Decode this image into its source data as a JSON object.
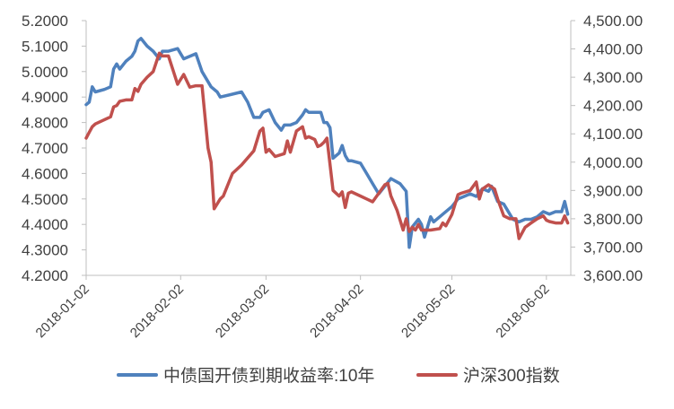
{
  "chart_data": {
    "type": "line",
    "title": "",
    "xlabel": "",
    "x_ticks": [
      "2018-01-02",
      "2018-02-02",
      "2018-03-02",
      "2018-04-02",
      "2018-05-02",
      "2018-06-02"
    ],
    "y_left": {
      "range": [
        4.2,
        5.2
      ],
      "ticks": [
        "4.2000",
        "4.3000",
        "4.4000",
        "4.5000",
        "4.6000",
        "4.7000",
        "4.8000",
        "4.9000",
        "5.0000",
        "5.1000",
        "5.2000"
      ]
    },
    "y_right": {
      "range": [
        3600,
        4500
      ],
      "ticks": [
        "3,600.00",
        "3,700.00",
        "3,800.00",
        "3,900.00",
        "4,000.00",
        "4,100.00",
        "4,200.00",
        "4,300.00",
        "4,400.00",
        "4,500.00"
      ]
    },
    "grid": false,
    "legend_position": "bottom",
    "series": [
      {
        "name": "中债国开债到期收益率:10年",
        "axis": "left",
        "color": "#4F81BD",
        "points": [
          [
            "2018-01-02",
            4.87
          ],
          [
            "2018-01-03",
            4.88
          ],
          [
            "2018-01-04",
            4.94
          ],
          [
            "2018-01-05",
            4.92
          ],
          [
            "2018-01-08",
            4.93
          ],
          [
            "2018-01-10",
            4.94
          ],
          [
            "2018-01-11",
            5.01
          ],
          [
            "2018-01-12",
            5.03
          ],
          [
            "2018-01-13",
            5.01
          ],
          [
            "2018-01-15",
            5.04
          ],
          [
            "2018-01-17",
            5.06
          ],
          [
            "2018-01-18",
            5.08
          ],
          [
            "2018-01-19",
            5.12
          ],
          [
            "2018-01-20",
            5.13
          ],
          [
            "2018-01-22",
            5.1
          ],
          [
            "2018-01-24",
            5.08
          ],
          [
            "2018-01-26",
            5.05
          ],
          [
            "2018-01-27",
            5.08
          ],
          [
            "2018-01-29",
            5.08
          ],
          [
            "2018-02-01",
            5.09
          ],
          [
            "2018-02-03",
            5.05
          ],
          [
            "2018-02-05",
            5.06
          ],
          [
            "2018-02-07",
            5.07
          ],
          [
            "2018-02-09",
            5.0
          ],
          [
            "2018-02-12",
            4.94
          ],
          [
            "2018-02-14",
            4.92
          ],
          [
            "2018-02-15",
            4.9
          ],
          [
            "2018-02-22",
            4.92
          ],
          [
            "2018-02-24",
            4.88
          ],
          [
            "2018-02-26",
            4.82
          ],
          [
            "2018-02-28",
            4.82
          ],
          [
            "2018-03-01",
            4.84
          ],
          [
            "2018-03-03",
            4.85
          ],
          [
            "2018-03-05",
            4.8
          ],
          [
            "2018-03-07",
            4.77
          ],
          [
            "2018-03-08",
            4.79
          ],
          [
            "2018-03-10",
            4.79
          ],
          [
            "2018-03-12",
            4.8
          ],
          [
            "2018-03-14",
            4.83
          ],
          [
            "2018-03-15",
            4.85
          ],
          [
            "2018-03-16",
            4.84
          ],
          [
            "2018-03-20",
            4.84
          ],
          [
            "2018-03-21",
            4.8
          ],
          [
            "2018-03-22",
            4.8
          ],
          [
            "2018-03-23",
            4.78
          ],
          [
            "2018-03-24",
            4.66
          ],
          [
            "2018-03-26",
            4.68
          ],
          [
            "2018-03-27",
            4.71
          ],
          [
            "2018-03-28",
            4.67
          ],
          [
            "2018-03-29",
            4.65
          ],
          [
            "2018-03-30",
            4.65
          ],
          [
            "2018-04-02",
            4.64
          ],
          [
            "2018-04-04",
            4.6
          ],
          [
            "2018-04-06",
            4.56
          ],
          [
            "2018-04-08",
            4.52
          ],
          [
            "2018-04-10",
            4.55
          ],
          [
            "2018-04-12",
            4.58
          ],
          [
            "2018-04-15",
            4.56
          ],
          [
            "2018-04-17",
            4.53
          ],
          [
            "2018-04-18",
            4.31
          ],
          [
            "2018-04-19",
            4.39
          ],
          [
            "2018-04-21",
            4.42
          ],
          [
            "2018-04-22",
            4.4
          ],
          [
            "2018-04-23",
            4.35
          ],
          [
            "2018-04-25",
            4.43
          ],
          [
            "2018-04-26",
            4.41
          ],
          [
            "2018-04-28",
            4.43
          ],
          [
            "2018-05-02",
            4.47
          ],
          [
            "2018-05-04",
            4.5
          ],
          [
            "2018-05-06",
            4.51
          ],
          [
            "2018-05-08",
            4.52
          ],
          [
            "2018-05-10",
            4.51
          ],
          [
            "2018-05-12",
            4.54
          ],
          [
            "2018-05-14",
            4.53
          ],
          [
            "2018-05-15",
            4.55
          ],
          [
            "2018-05-17",
            4.49
          ],
          [
            "2018-05-19",
            4.48
          ],
          [
            "2018-05-20",
            4.46
          ],
          [
            "2018-05-22",
            4.42
          ],
          [
            "2018-05-24",
            4.41
          ],
          [
            "2018-05-26",
            4.42
          ],
          [
            "2018-05-28",
            4.42
          ],
          [
            "2018-05-30",
            4.43
          ],
          [
            "2018-06-01",
            4.45
          ],
          [
            "2018-06-03",
            4.44
          ],
          [
            "2018-06-05",
            4.45
          ],
          [
            "2018-06-07",
            4.45
          ],
          [
            "2018-06-08",
            4.49
          ],
          [
            "2018-06-09",
            4.44
          ]
        ]
      },
      {
        "name": "沪深300指数",
        "axis": "right",
        "color": "#C0504D",
        "points": [
          [
            "2018-01-02",
            4085
          ],
          [
            "2018-01-03",
            4105
          ],
          [
            "2018-01-04",
            4125
          ],
          [
            "2018-01-05",
            4135
          ],
          [
            "2018-01-08",
            4150
          ],
          [
            "2018-01-10",
            4160
          ],
          [
            "2018-01-11",
            4195
          ],
          [
            "2018-01-12",
            4200
          ],
          [
            "2018-01-13",
            4215
          ],
          [
            "2018-01-15",
            4220
          ],
          [
            "2018-01-17",
            4220
          ],
          [
            "2018-01-18",
            4260
          ],
          [
            "2018-01-19",
            4250
          ],
          [
            "2018-01-20",
            4275
          ],
          [
            "2018-01-22",
            4300
          ],
          [
            "2018-01-24",
            4320
          ],
          [
            "2018-01-26",
            4385
          ],
          [
            "2018-01-27",
            4375
          ],
          [
            "2018-01-29",
            4375
          ],
          [
            "2018-02-01",
            4275
          ],
          [
            "2018-02-03",
            4310
          ],
          [
            "2018-02-05",
            4265
          ],
          [
            "2018-02-07",
            4270
          ],
          [
            "2018-02-09",
            4270
          ],
          [
            "2018-02-11",
            4050
          ],
          [
            "2018-02-12",
            4000
          ],
          [
            "2018-02-13",
            3835
          ],
          [
            "2018-02-15",
            3870
          ],
          [
            "2018-02-16",
            3880
          ],
          [
            "2018-02-19",
            3960
          ],
          [
            "2018-02-22",
            3990
          ],
          [
            "2018-02-26",
            4040
          ],
          [
            "2018-02-28",
            4110
          ],
          [
            "2018-03-01",
            4120
          ],
          [
            "2018-03-02",
            4035
          ],
          [
            "2018-03-03",
            4045
          ],
          [
            "2018-03-05",
            4020
          ],
          [
            "2018-03-08",
            4030
          ],
          [
            "2018-03-09",
            4075
          ],
          [
            "2018-03-10",
            4035
          ],
          [
            "2018-03-12",
            4110
          ],
          [
            "2018-03-14",
            4125
          ],
          [
            "2018-03-15",
            4085
          ],
          [
            "2018-03-16",
            4090
          ],
          [
            "2018-03-18",
            4080
          ],
          [
            "2018-03-19",
            4055
          ],
          [
            "2018-03-20",
            4060
          ],
          [
            "2018-03-21",
            4070
          ],
          [
            "2018-03-22",
            4085
          ],
          [
            "2018-03-24",
            3900
          ],
          [
            "2018-03-26",
            3880
          ],
          [
            "2018-03-27",
            3895
          ],
          [
            "2018-03-28",
            3840
          ],
          [
            "2018-03-29",
            3890
          ],
          [
            "2018-03-30",
            3895
          ],
          [
            "2018-04-02",
            3880
          ],
          [
            "2018-04-04",
            3870
          ],
          [
            "2018-04-06",
            3860
          ],
          [
            "2018-04-10",
            3920
          ],
          [
            "2018-04-11",
            3925
          ],
          [
            "2018-04-12",
            3880
          ],
          [
            "2018-04-14",
            3830
          ],
          [
            "2018-04-16",
            3760
          ],
          [
            "2018-04-17",
            3800
          ],
          [
            "2018-04-18",
            3755
          ],
          [
            "2018-04-19",
            3770
          ],
          [
            "2018-04-20",
            3760
          ],
          [
            "2018-04-21",
            3780
          ],
          [
            "2018-04-22",
            3760
          ],
          [
            "2018-04-25",
            3760
          ],
          [
            "2018-04-28",
            3765
          ],
          [
            "2018-04-29",
            3785
          ],
          [
            "2018-04-30",
            3775
          ],
          [
            "2018-05-02",
            3815
          ],
          [
            "2018-05-04",
            3885
          ],
          [
            "2018-05-05",
            3890
          ],
          [
            "2018-05-08",
            3900
          ],
          [
            "2018-05-10",
            3930
          ],
          [
            "2018-05-11",
            3870
          ],
          [
            "2018-05-12",
            3905
          ],
          [
            "2018-05-14",
            3920
          ],
          [
            "2018-05-16",
            3905
          ],
          [
            "2018-05-17",
            3870
          ],
          [
            "2018-05-19",
            3810
          ],
          [
            "2018-05-21",
            3800
          ],
          [
            "2018-05-23",
            3800
          ],
          [
            "2018-05-24",
            3730
          ],
          [
            "2018-05-26",
            3770
          ],
          [
            "2018-05-28",
            3785
          ],
          [
            "2018-05-30",
            3800
          ],
          [
            "2018-06-01",
            3810
          ],
          [
            "2018-06-02",
            3795
          ],
          [
            "2018-06-03",
            3790
          ],
          [
            "2018-06-05",
            3785
          ],
          [
            "2018-06-07",
            3785
          ],
          [
            "2018-06-08",
            3810
          ],
          [
            "2018-06-09",
            3785
          ]
        ]
      }
    ]
  }
}
